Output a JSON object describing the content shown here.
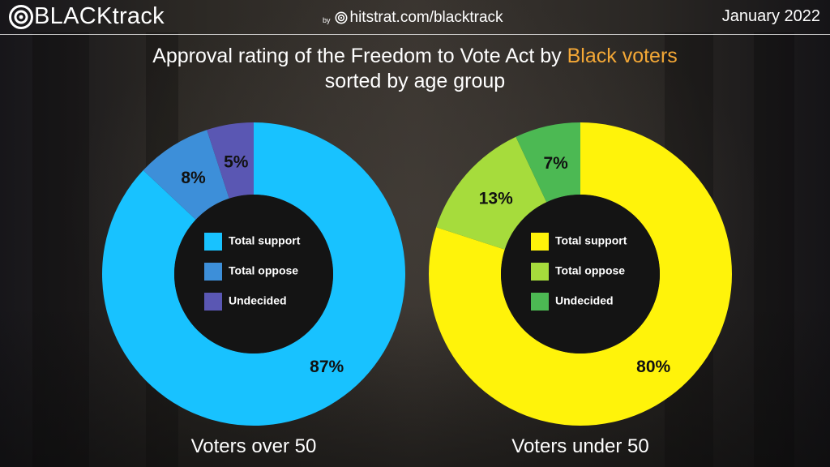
{
  "header": {
    "brand": "BLACKtrack",
    "by_label": "by",
    "site": "hitstrat.com/blacktrack",
    "date": "January 2022"
  },
  "title": {
    "line1_prefix": "Approval rating of the Freedom to Vote Act by ",
    "line1_accent": "Black voters",
    "line2": "sorted by age group"
  },
  "colors": {
    "accent": "#f4a836"
  },
  "chart_data": [
    {
      "type": "pie",
      "variant": "donut",
      "title": "Voters over 50",
      "categories": [
        "Total support",
        "Total oppose",
        "Undecided"
      ],
      "values": [
        87,
        8,
        5
      ],
      "labels": [
        "87%",
        "8%",
        "5%"
      ],
      "colors": [
        "#18c2ff",
        "#3d8fd9",
        "#5a57b3"
      ],
      "legend": "center"
    },
    {
      "type": "pie",
      "variant": "donut",
      "title": "Voters under 50",
      "categories": [
        "Total support",
        "Total oppose",
        "Undecided"
      ],
      "values": [
        80,
        13,
        7
      ],
      "labels": [
        "80%",
        "13%",
        "7%"
      ],
      "colors": [
        "#fff30a",
        "#a6dc3c",
        "#4cb953"
      ],
      "legend": "center"
    }
  ]
}
